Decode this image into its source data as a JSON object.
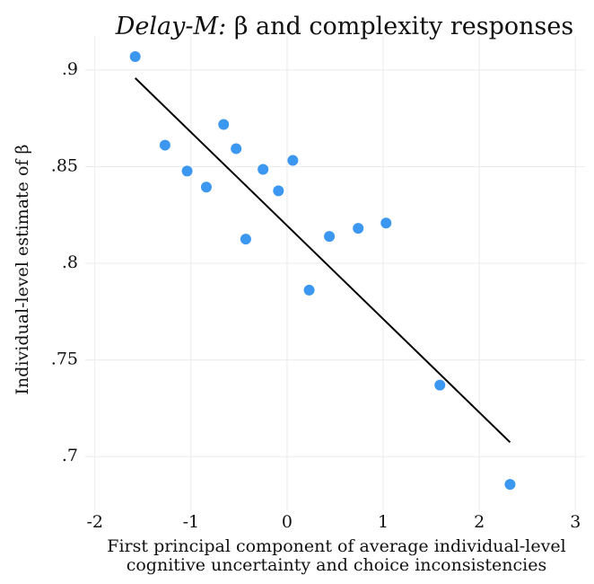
{
  "chart_data": {
    "type": "scatter",
    "title_prefix": "Delay-M:",
    "title": "β and complexity responses",
    "x_label": [
      "First principal component of average individual-level",
      "cognitive uncertainty and choice inconsistencies"
    ],
    "y_label": "Individual-level estimate of β",
    "series": [
      {
        "color": "#3c97f1",
        "x": [
          -1.58,
          -1.27,
          -1.04,
          -0.84,
          -0.66,
          -0.53,
          -0.43,
          -0.25,
          -0.09,
          0.06,
          0.23,
          0.44,
          0.74,
          1.03,
          1.59,
          2.32
        ],
        "values": [
          0.9069,
          0.8611,
          0.8477,
          0.8394,
          0.8718,
          0.8593,
          0.8125,
          0.8486,
          0.8375,
          0.8532,
          0.7861,
          0.8139,
          0.8181,
          0.8208,
          0.737,
          0.6856
        ]
      }
    ],
    "fit": {
      "color": "#000000",
      "x": [
        -1.58,
        2.32
      ],
      "values": [
        0.8958,
        0.7074
      ]
    },
    "xlim": [
      -2.1,
      3.1
    ],
    "ylim": [
      0.6722,
      0.9176
    ],
    "xticks": [
      -2,
      -1,
      0,
      1,
      2,
      3
    ],
    "yticks": [
      {
        "value": 0.7,
        "label": ".7"
      },
      {
        "value": 0.75,
        "label": ".75"
      },
      {
        "value": 0.8,
        "label": ".8"
      },
      {
        "value": 0.85,
        "label": ".85"
      },
      {
        "value": 0.9,
        "label": ".9"
      }
    ],
    "grid": true
  }
}
